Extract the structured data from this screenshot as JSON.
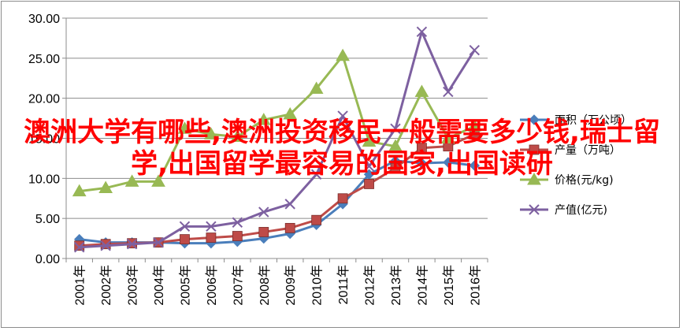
{
  "chart_data": {
    "type": "line",
    "categories": [
      "2001年",
      "2002年",
      "2003年",
      "2004年",
      "2005年",
      "2006年",
      "2007年",
      "2008年",
      "2009年",
      "2010年",
      "2011年",
      "2012年",
      "2013年",
      "2014年",
      "2015年",
      "2016年"
    ],
    "ylim": [
      0,
      30
    ],
    "yticks": [
      "0.00",
      "5.00",
      "10.00",
      "15.00",
      "20.00",
      "25.00",
      "30.00"
    ],
    "grid": true,
    "legend_position": "right",
    "series": [
      {
        "name": "面积（万公顷）",
        "color": "#4a7ebb",
        "marker": "diamond",
        "values": [
          2.4,
          2.0,
          2.0,
          2.0,
          1.9,
          1.9,
          2.1,
          2.5,
          3.1,
          4.2,
          6.8,
          10.5,
          12.2,
          11.9,
          12.0,
          11.6
        ]
      },
      {
        "name": "产量（万吨）",
        "color": "#be4b48",
        "marker": "square",
        "values": [
          1.6,
          1.8,
          1.9,
          2.0,
          2.4,
          2.6,
          2.8,
          3.3,
          3.8,
          4.8,
          7.5,
          9.3,
          11.3,
          13.8,
          14.0,
          15.5
        ]
      },
      {
        "name": "价格(元/kg)",
        "color": "#98b954",
        "marker": "triangle",
        "values": [
          8.4,
          8.8,
          9.6,
          9.6,
          16.2,
          15.5,
          15.2,
          17.3,
          18.0,
          21.2,
          25.3,
          14.6,
          14.0,
          20.8,
          15.0,
          16.5
        ]
      },
      {
        "name": "产值(亿元)",
        "color": "#7d60a0",
        "marker": "x",
        "values": [
          1.4,
          1.6,
          1.8,
          2.0,
          4.0,
          4.0,
          4.5,
          5.8,
          6.8,
          10.5,
          17.8,
          11.5,
          16.2,
          28.3,
          20.8,
          26.0
        ]
      }
    ]
  },
  "overlay_text": "澳洲大学有哪些,澳洲投资移民一般需要多少钱,瑞士留学,出国留学最容易的国家,出国读研"
}
